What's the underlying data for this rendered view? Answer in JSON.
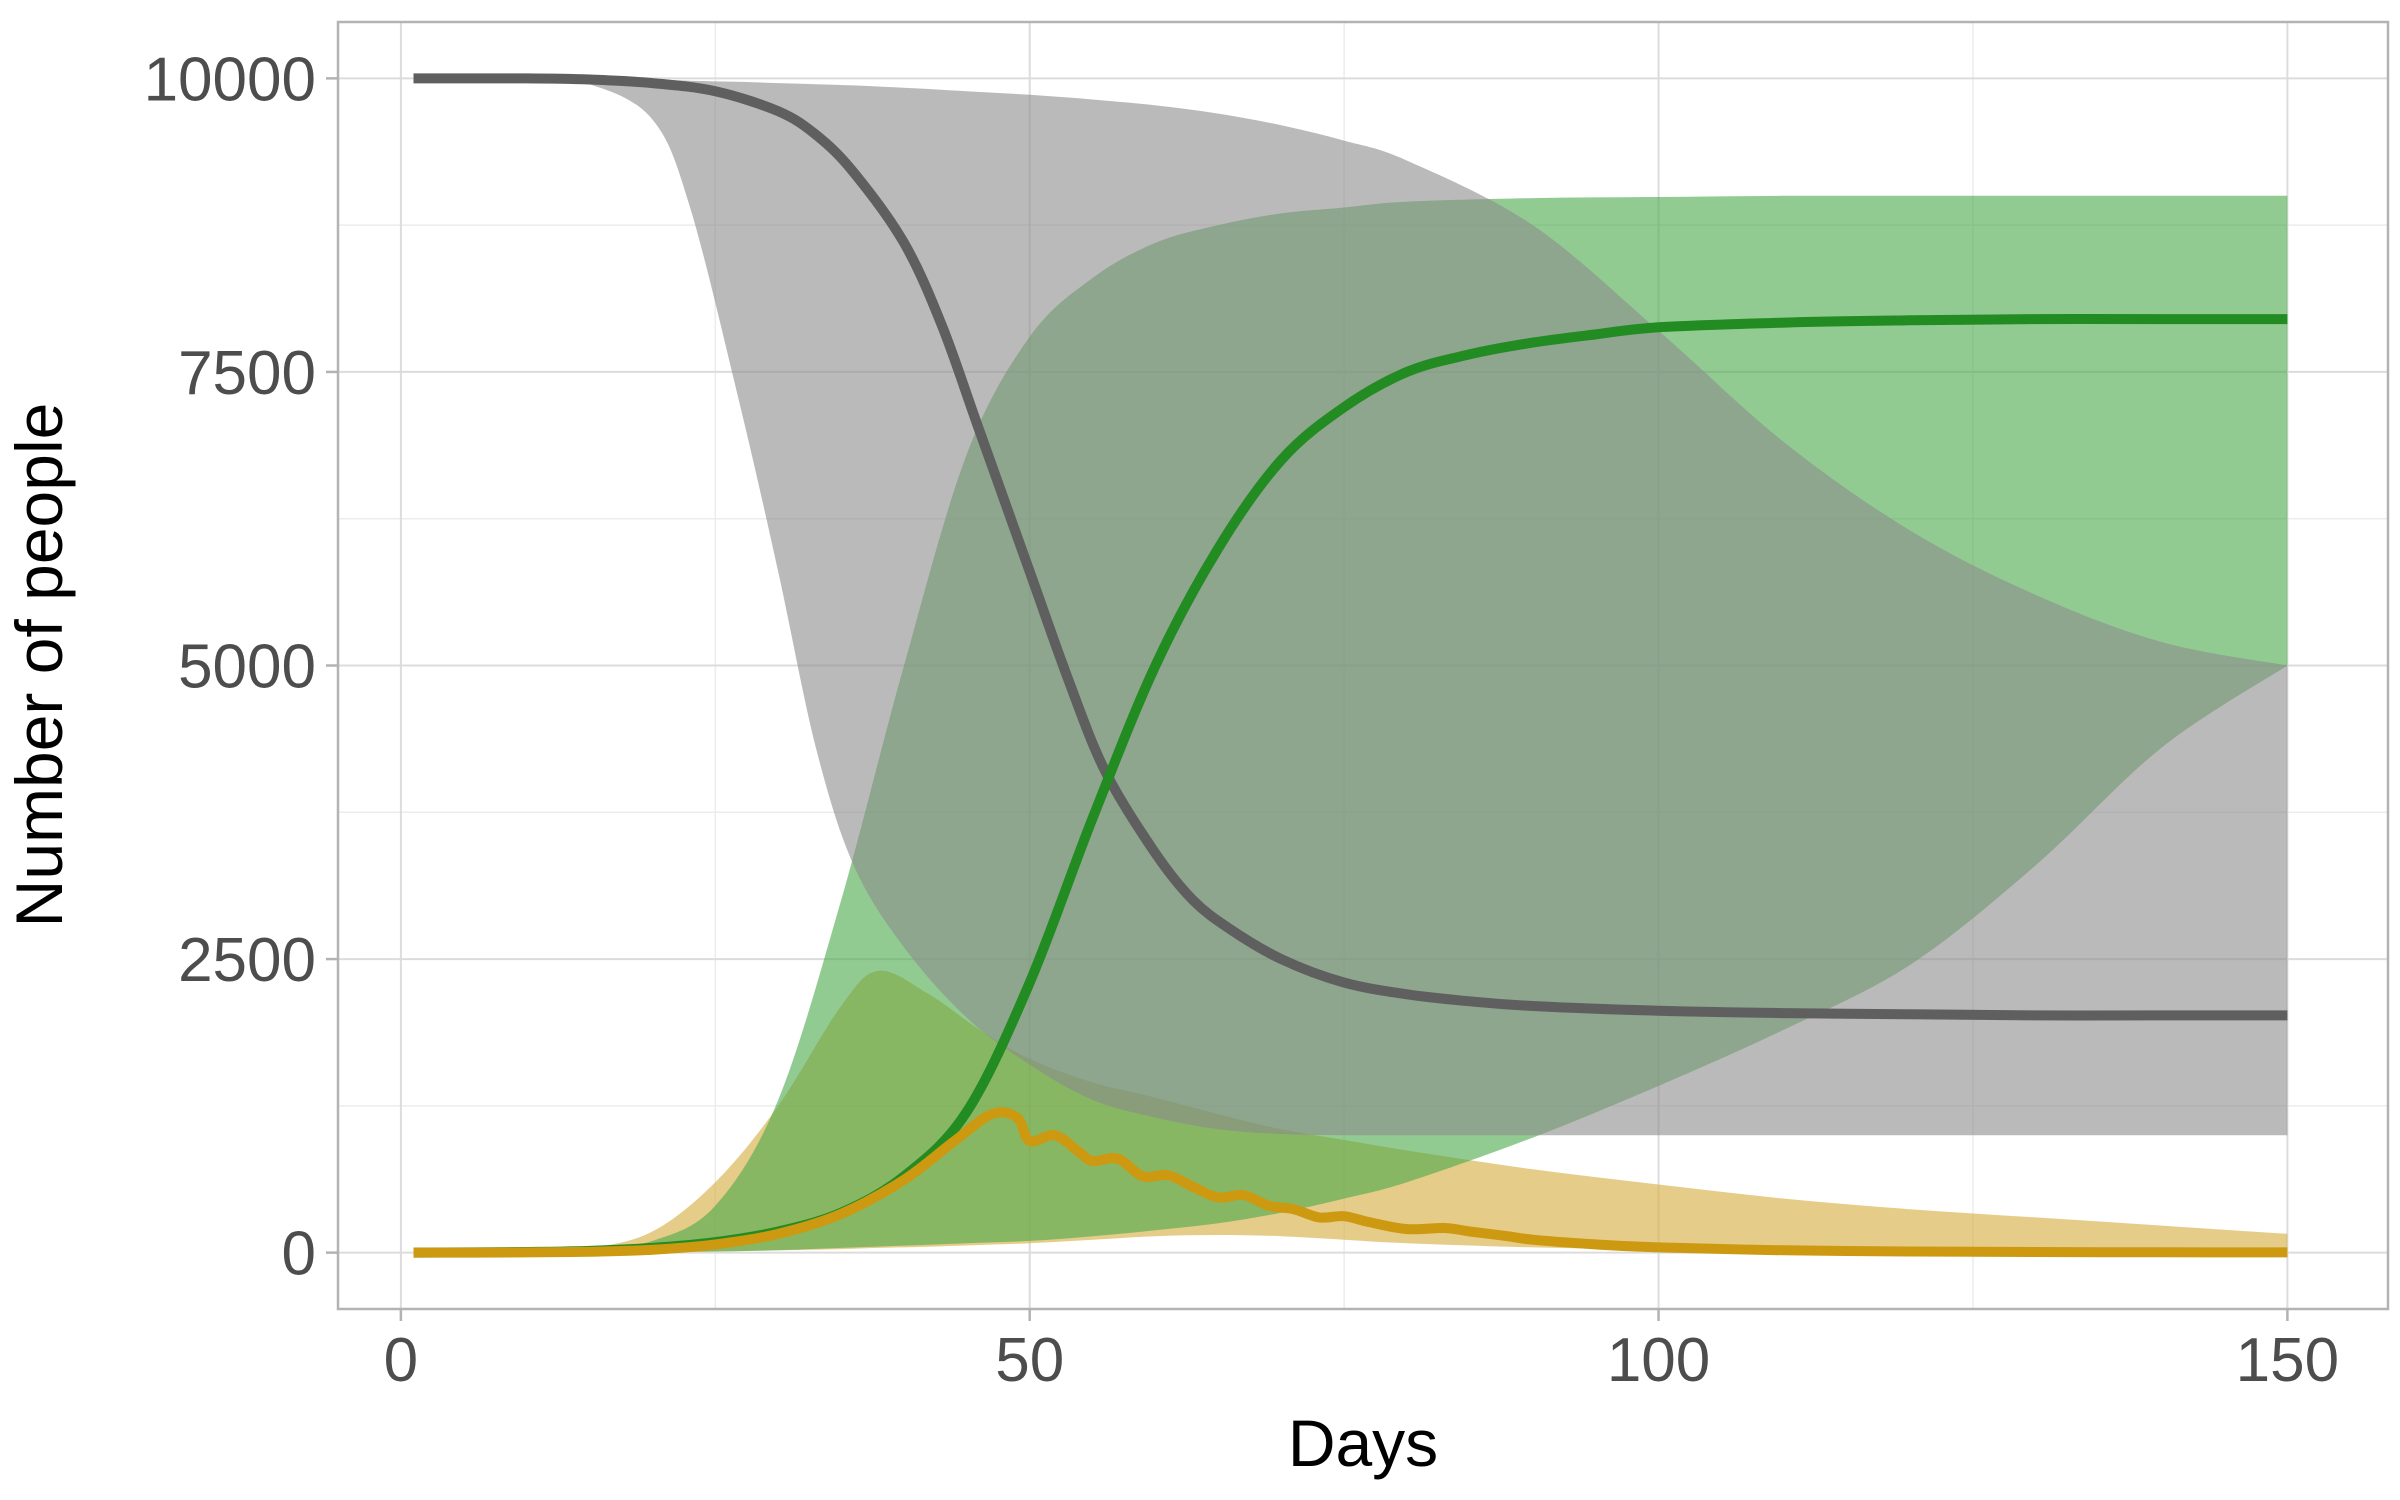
{
  "chart_data": {
    "type": "line",
    "title": "",
    "xlabel": "Days",
    "ylabel": "Number of people",
    "xlim": [
      -5,
      158
    ],
    "ylim": [
      -480,
      10480
    ],
    "x_ticks": [
      0,
      50,
      100,
      150
    ],
    "y_ticks": [
      0,
      2500,
      5000,
      7500,
      10000
    ],
    "x_tick_labels": [
      "0",
      "50",
      "100",
      "150"
    ],
    "y_tick_labels": [
      "0",
      "2500",
      "5000",
      "7500",
      "10000"
    ],
    "grid": true,
    "legend": "none",
    "colors": {
      "grey_band": "#8c8c8c",
      "grey_line": "#5f5f5f",
      "green_band": "#4aa84a",
      "green_line": "#228b22",
      "gold_band": "#d9b04a",
      "gold_line": "#cc9910"
    },
    "bands": [
      {
        "color_key": "gold_band",
        "opacity": 0.65,
        "x": [
          1,
          10,
          15,
          20,
          25,
          30,
          35,
          38,
          42,
          46,
          50,
          55,
          60,
          65,
          70,
          75,
          80,
          90,
          100,
          110,
          120,
          130,
          140,
          150
        ],
        "upper": [
          0,
          10,
          40,
          180,
          600,
          1250,
          2100,
          2400,
          2200,
          1900,
          1650,
          1450,
          1320,
          1180,
          1050,
          960,
          870,
          710,
          580,
          460,
          370,
          300,
          230,
          160
        ],
        "lower": [
          0,
          0,
          0,
          5,
          10,
          20,
          30,
          40,
          50,
          65,
          80,
          110,
          140,
          150,
          140,
          110,
          80,
          45,
          25,
          12,
          6,
          3,
          2,
          1
        ]
      },
      {
        "color_key": "green_band",
        "opacity": 0.6,
        "x": [
          1,
          10,
          15,
          20,
          25,
          30,
          35,
          40,
          45,
          50,
          55,
          60,
          65,
          70,
          75,
          80,
          90,
          100,
          110,
          120,
          130,
          140,
          150
        ],
        "upper": [
          0,
          5,
          20,
          100,
          400,
          1300,
          3000,
          5000,
          6800,
          7800,
          8300,
          8600,
          8750,
          8850,
          8900,
          8950,
          8980,
          8990,
          9000,
          9000,
          9000,
          9000,
          9000
        ],
        "lower": [
          0,
          0,
          0,
          5,
          10,
          20,
          40,
          60,
          80,
          100,
          140,
          190,
          250,
          340,
          460,
          600,
          980,
          1420,
          1900,
          2450,
          3300,
          4300,
          5000
        ]
      },
      {
        "color_key": "grey_band",
        "opacity": 0.6,
        "x": [
          1,
          10,
          15,
          20,
          23,
          27,
          30,
          33,
          36,
          40,
          45,
          50,
          55,
          60,
          65,
          70,
          75,
          80,
          90,
          100,
          110,
          120,
          130,
          140,
          150
        ],
        "upper": [
          10000,
          10000,
          9995,
          9990,
          9980,
          9970,
          9960,
          9950,
          9940,
          9920,
          9890,
          9860,
          9820,
          9770,
          9700,
          9600,
          9470,
          9300,
          8750,
          7850,
          6900,
          6150,
          5600,
          5200,
          5000
        ],
        "lower": [
          10000,
          9990,
          9950,
          9650,
          8900,
          7200,
          5800,
          4300,
          3300,
          2600,
          2000,
          1600,
          1300,
          1150,
          1050,
          1010,
          1000,
          1000,
          1000,
          1000,
          1000,
          1000,
          1000,
          1000,
          1000
        ]
      }
    ],
    "series": [
      {
        "color_key": "grey_line",
        "x": [
          1,
          10,
          15,
          20,
          25,
          30,
          33,
          36,
          40,
          43,
          46,
          50,
          53,
          56,
          60,
          63,
          66,
          70,
          75,
          80,
          85,
          90,
          100,
          110,
          120,
          130,
          140,
          150
        ],
        "values": [
          10000,
          10000,
          9990,
          9960,
          9890,
          9720,
          9520,
          9200,
          8600,
          7900,
          7000,
          5800,
          4900,
          4100,
          3400,
          3000,
          2750,
          2500,
          2300,
          2200,
          2140,
          2100,
          2060,
          2040,
          2030,
          2020,
          2020,
          2020
        ]
      },
      {
        "color_key": "green_line",
        "x": [
          1,
          10,
          15,
          20,
          25,
          30,
          35,
          40,
          45,
          50,
          55,
          60,
          65,
          70,
          75,
          80,
          85,
          90,
          95,
          100,
          110,
          120,
          130,
          140,
          150
        ],
        "values": [
          0,
          5,
          15,
          40,
          90,
          180,
          340,
          650,
          1200,
          2300,
          3700,
          5000,
          6000,
          6750,
          7200,
          7500,
          7650,
          7750,
          7820,
          7880,
          7920,
          7940,
          7950,
          7950,
          7950
        ]
      },
      {
        "color_key": "gold_line",
        "x": [
          1,
          10,
          15,
          20,
          25,
          30,
          35,
          40,
          44,
          47,
          49,
          50,
          52,
          54,
          55,
          57,
          59,
          61,
          63,
          65,
          67,
          69,
          71,
          73,
          75,
          77,
          80,
          83,
          85,
          88,
          90,
          95,
          100,
          110,
          120,
          130,
          140,
          150
        ],
        "values": [
          0,
          2,
          8,
          25,
          70,
          160,
          330,
          620,
          950,
          1180,
          1150,
          950,
          1000,
          850,
          780,
          800,
          650,
          660,
          560,
          470,
          490,
          400,
          370,
          300,
          310,
          260,
          200,
          210,
          180,
          140,
          110,
          70,
          45,
          20,
          10,
          5,
          3,
          2
        ]
      }
    ]
  }
}
